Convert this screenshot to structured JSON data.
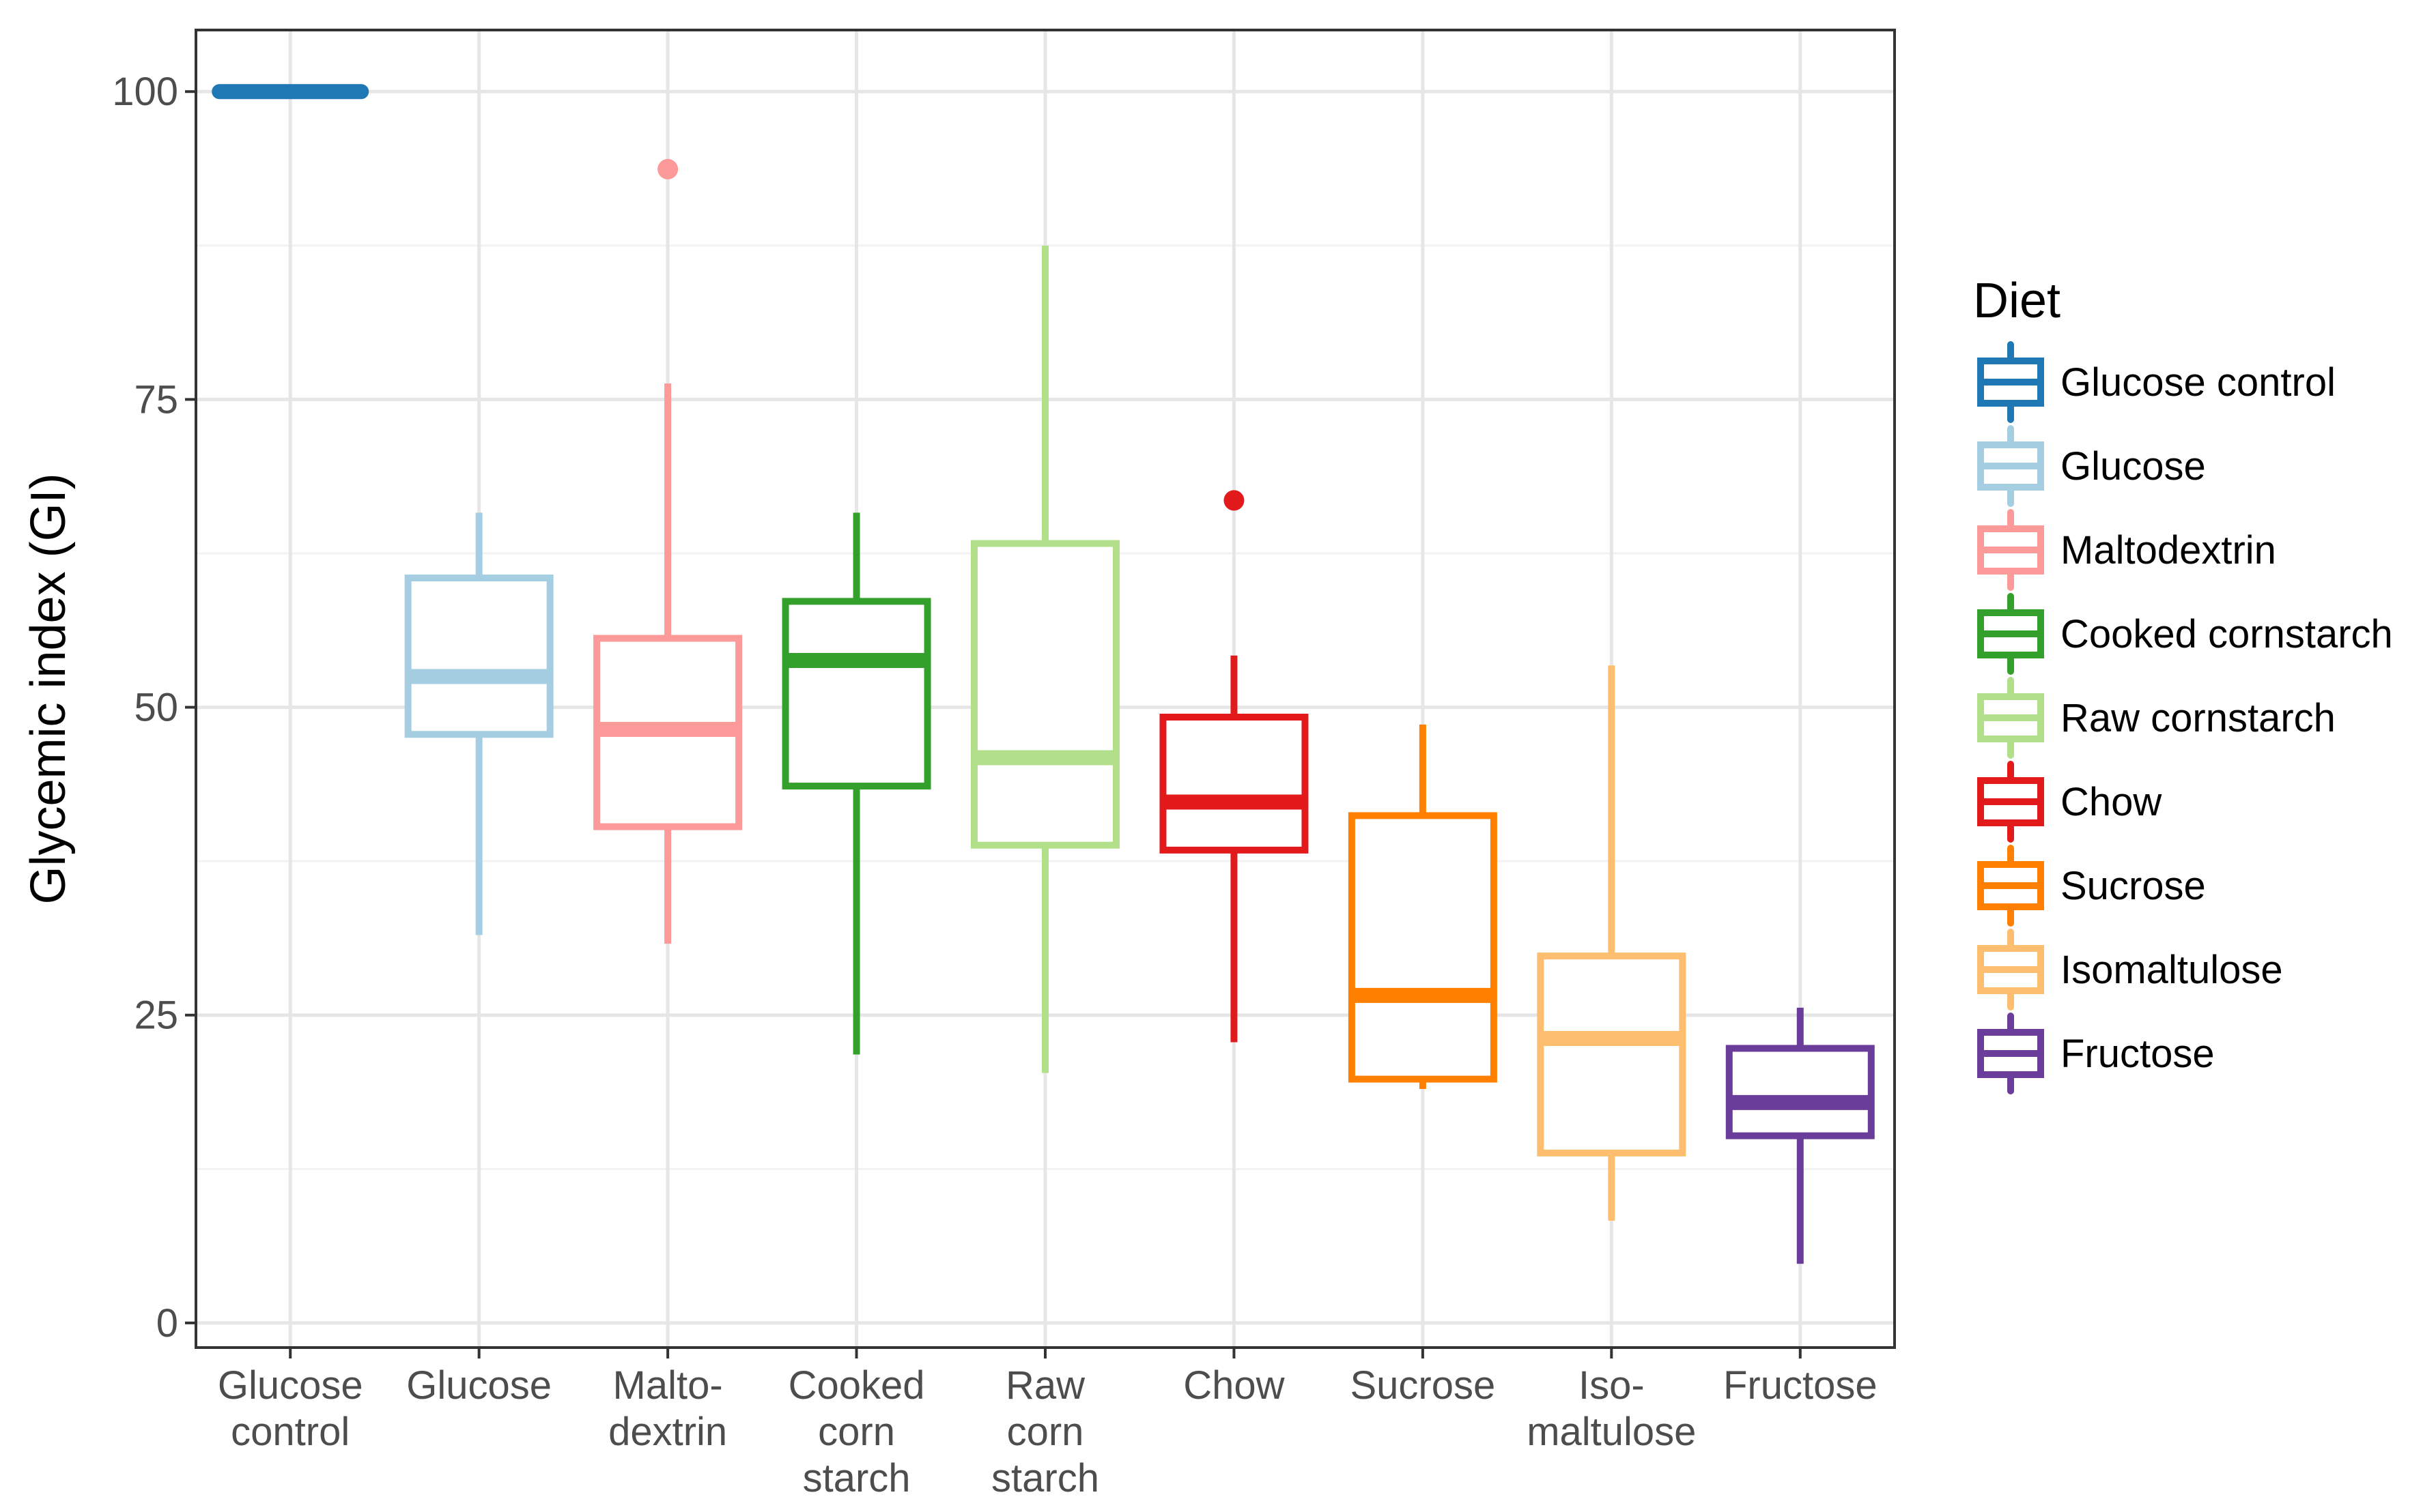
{
  "chart_data": {
    "type": "boxplot",
    "title": "",
    "xlabel": "",
    "ylabel": "Glycemic index (GI)",
    "ylim": [
      -2,
      105
    ],
    "y_ticks": [
      0,
      25,
      50,
      75,
      100
    ],
    "grid": true,
    "legend": {
      "title": "Diet",
      "placement": "right"
    },
    "categories": [
      {
        "name": "Glucose control",
        "tick_label_lines": [
          "Glucose",
          "control"
        ],
        "color": "#1F78B4",
        "min": 100,
        "q1": 100,
        "median": 100,
        "q3": 100,
        "max": 100,
        "outliers": []
      },
      {
        "name": "Glucose",
        "tick_label_lines": [
          "Glucose"
        ],
        "color": "#A6CEE3",
        "min": 31.5,
        "q1": 47.8,
        "median": 52.5,
        "q3": 60.5,
        "max": 65.8,
        "outliers": []
      },
      {
        "name": "Maltodextrin",
        "tick_label_lines": [
          "Malto-",
          "dextrin"
        ],
        "color": "#FB9A99",
        "min": 30.8,
        "q1": 40.3,
        "median": 48.2,
        "q3": 55.6,
        "max": 76.3,
        "outliers": [
          93.7
        ]
      },
      {
        "name": "Cooked cornstarch",
        "tick_label_lines": [
          "Cooked",
          "corn",
          "starch"
        ],
        "color": "#33A02C",
        "min": 21.8,
        "q1": 43.6,
        "median": 53.8,
        "q3": 58.6,
        "max": 65.8,
        "outliers": []
      },
      {
        "name": "Raw cornstarch",
        "tick_label_lines": [
          "Raw",
          "corn",
          "starch"
        ],
        "color": "#B2DF8A",
        "min": 20.3,
        "q1": 38.8,
        "median": 45.9,
        "q3": 63.3,
        "max": 87.5,
        "outliers": []
      },
      {
        "name": "Chow",
        "tick_label_lines": [
          "Chow"
        ],
        "color": "#E31A1C",
        "min": 22.8,
        "q1": 38.4,
        "median": 42.3,
        "q3": 49.2,
        "max": 54.2,
        "outliers": [
          66.8
        ]
      },
      {
        "name": "Sucrose",
        "tick_label_lines": [
          "Sucrose"
        ],
        "color": "#FF7F00",
        "min": 19.0,
        "q1": 19.8,
        "median": 26.6,
        "q3": 41.2,
        "max": 48.6,
        "outliers": []
      },
      {
        "name": "Isomaltulose",
        "tick_label_lines": [
          "Iso-",
          "maltulose"
        ],
        "color": "#FDBF6F",
        "min": 8.3,
        "q1": 13.8,
        "median": 23.1,
        "q3": 29.8,
        "max": 53.4,
        "outliers": []
      },
      {
        "name": "Fructose",
        "tick_label_lines": [
          "Fructose"
        ],
        "color": "#6A3D9A",
        "min": 4.8,
        "q1": 15.2,
        "median": 17.9,
        "q3": 22.3,
        "max": 25.6,
        "outliers": []
      }
    ]
  }
}
